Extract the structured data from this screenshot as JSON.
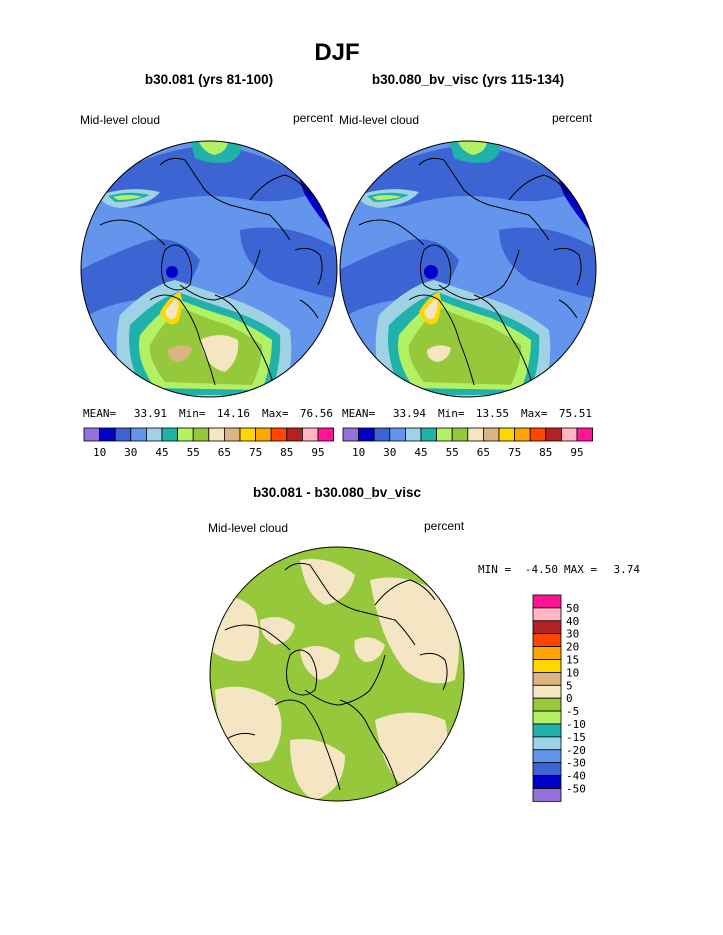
{
  "figure": {
    "title": "DJF",
    "difference_title": "b30.081 - b30.080_bv_visc"
  },
  "palette_abs": [
    "#9370db",
    "#0000c8",
    "#3c64d2",
    "#6495ed",
    "#a0d2e6",
    "#20b2aa",
    "#b4f064",
    "#96c83c",
    "#f5e6c3",
    "#dcb482",
    "#ffd700",
    "#ffa500",
    "#ff4500",
    "#b22222",
    "#ffb6c1",
    "#ff1493"
  ],
  "palette_diff": [
    "#9370db",
    "#0000c8",
    "#3c64d2",
    "#6495ed",
    "#a0d2e6",
    "#20b2aa",
    "#b4f064",
    "#96c83c",
    "#f5e6c3",
    "#dcb482",
    "#ffd700",
    "#ffa500",
    "#ff4500",
    "#b22222",
    "#ffb6c1",
    "#ff1493"
  ],
  "chart_data": [
    {
      "type": "heatmap",
      "projection": "north polar stereographic",
      "title": "b30.081 (yrs 81-100)",
      "variable_label": "Mid-level cloud",
      "units": "percent",
      "stats": {
        "mean_label": "MEAN=",
        "mean": "33.91",
        "min_label": "Min=",
        "min": "14.16",
        "max_label": "Max=",
        "max": "76.56"
      },
      "colorbar_levels": [
        "10",
        "30",
        "45",
        "55",
        "65",
        "75",
        "85",
        "95"
      ]
    },
    {
      "type": "heatmap",
      "projection": "north polar stereographic",
      "title": "b30.080_bv_visc (yrs 115-134)",
      "variable_label": "Mid-level cloud",
      "units": "percent",
      "stats": {
        "mean_label": "MEAN=",
        "mean": "33.94",
        "min_label": "Min=",
        "min": "13.55",
        "max_label": "Max=",
        "max": "75.51"
      },
      "colorbar_levels": [
        "10",
        "30",
        "45",
        "55",
        "65",
        "75",
        "85",
        "95"
      ]
    },
    {
      "type": "heatmap",
      "projection": "north polar stereographic",
      "title": "b30.081 - b30.080_bv_visc",
      "variable_label": "Mid-level cloud",
      "units": "percent",
      "stats": {
        "min_label": "MIN =",
        "min": "-4.50",
        "max_label": "MAX =",
        "max": "3.74"
      },
      "colorbar_levels": [
        "50",
        "40",
        "30",
        "20",
        "15",
        "10",
        "5",
        "0",
        "-5",
        "-10",
        "-15",
        "-20",
        "-30",
        "-40",
        "-50"
      ]
    }
  ]
}
